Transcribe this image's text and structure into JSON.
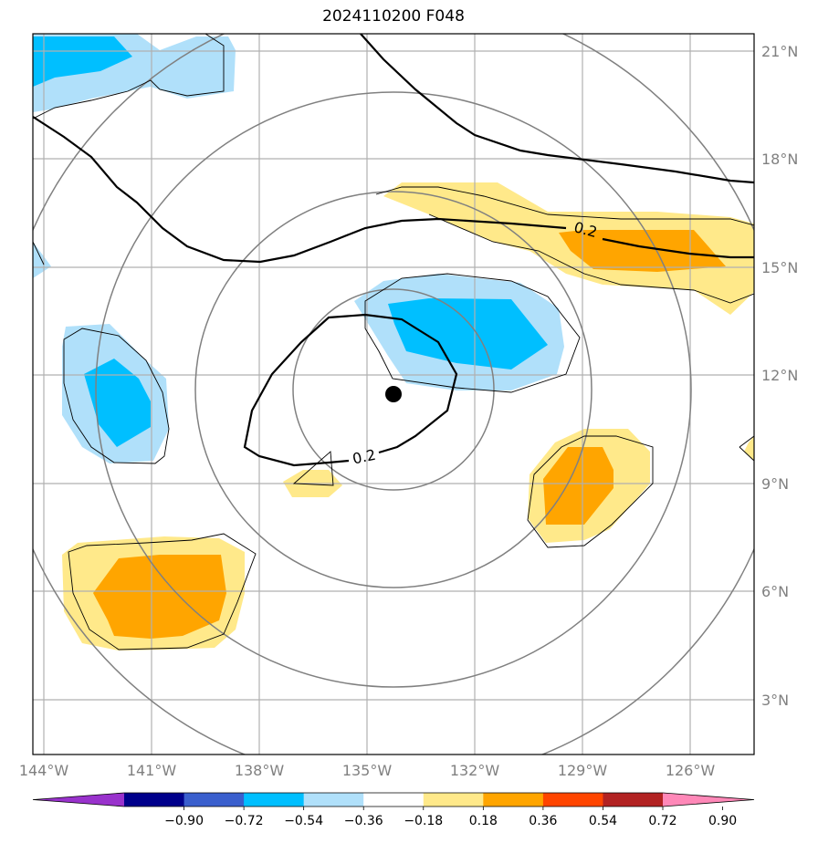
{
  "title": "2024110200 F048",
  "map": {
    "longitude_labels": [
      "144°W",
      "141°W",
      "138°W",
      "135°W",
      "132°W",
      "129°W",
      "126°W"
    ],
    "latitude_labels": [
      "21°N",
      "18°N",
      "15°N",
      "12°N",
      "9°N",
      "6°N",
      "3°N"
    ],
    "contour_labels": [
      "0.2",
      "0.2"
    ],
    "storm_center_marker": "filled-black-circle"
  },
  "colorbar": {
    "tick_labels": [
      "−0.90",
      "−0.72",
      "−0.54",
      "−0.36",
      "−0.18",
      "0.18",
      "0.36",
      "0.54",
      "0.72",
      "0.90"
    ],
    "colors": [
      "#9932cc",
      "#00008b",
      "#3a5fcd",
      "#00bfff",
      "#b0e0fa",
      "#ffffff",
      "#ffe98a",
      "#ffa500",
      "#ff4500",
      "#b22222",
      "#ff88b8"
    ]
  }
}
